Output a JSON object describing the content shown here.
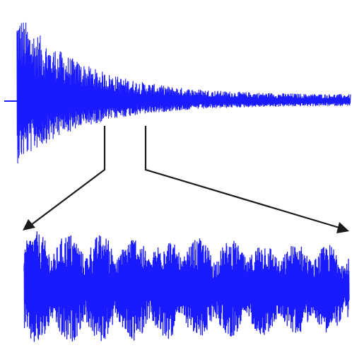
{
  "colors": {
    "waveform": "#1a1aff",
    "connector": "#1a1a1a",
    "background": "#ffffff"
  },
  "chart_data": [
    {
      "type": "line",
      "title": "",
      "xlabel": "",
      "ylabel": "",
      "description_series": "decaying-oscillation",
      "x_range": [
        0,
        1
      ],
      "y_range": [
        -1,
        1
      ],
      "envelope": {
        "initial_amplitude": 1.0,
        "final_amplitude": 0.07,
        "decay_rate": 5.0
      },
      "grid": false,
      "legend": "none"
    },
    {
      "type": "line",
      "title": "",
      "xlabel": "",
      "ylabel": "",
      "description_series": "zoomed-segment",
      "x_range": [
        0.27,
        0.4
      ],
      "y_range": [
        -1,
        1
      ],
      "modulation_cycles": 10,
      "grid": false,
      "legend": "none"
    }
  ]
}
